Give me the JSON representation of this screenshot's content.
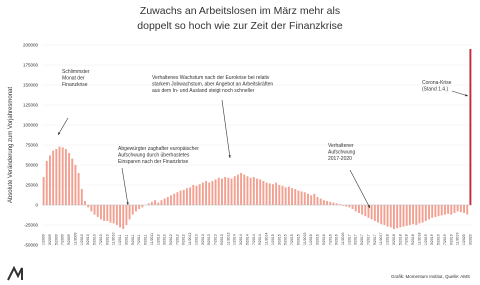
{
  "chart_data": {
    "type": "bar",
    "title": [
      "Zuwachs an Arbeitslosen im März mehr als",
      "doppelt so hoch wie zur Zeit der Finanzkrise"
    ],
    "y_label": "Absolute Veränderung zum Vorjahresmonat",
    "source": "Grafik: Momentum Institut, Quelle: AMS",
    "color": "#f2a092",
    "highlight_color": "#c8283c",
    "ylim": [
      -50000,
      200000
    ],
    "yticks": [
      -50000,
      -25000,
      0,
      25000,
      50000,
      75000,
      100000,
      125000,
      150000,
      175000,
      200000
    ],
    "categories": [
      "1/2009",
      null,
      "3/2009",
      null,
      "5/2009",
      null,
      "7/2009",
      null,
      "9/2009",
      null,
      "11/2009",
      null,
      "1/2010",
      null,
      "3/2010",
      null,
      "5/2010",
      null,
      "7/2010",
      null,
      "9/2010",
      null,
      "11/2010",
      null,
      "1/2011",
      null,
      "3/2011",
      null,
      "5/2011",
      null,
      "7/2011",
      null,
      "9/2011",
      null,
      "11/2011",
      null,
      "1/2012",
      null,
      "3/2012",
      null,
      "5/2012",
      null,
      "7/2012",
      null,
      "9/2012",
      null,
      "11/2012",
      null,
      "1/2013",
      null,
      "3/2013",
      null,
      "5/2013",
      null,
      "7/2013",
      null,
      "9/2013",
      null,
      "11/2013",
      null,
      "1/2014",
      null,
      "3/2014",
      null,
      "5/2014",
      null,
      "7/2014",
      null,
      "9/2014",
      null,
      "11/2014",
      null,
      "1/2015",
      null,
      "3/2015",
      null,
      "5/2015",
      null,
      "7/2015",
      null,
      "9/2015",
      null,
      "11/2015",
      null,
      "1/2016",
      null,
      "3/2016",
      null,
      "5/2016",
      null,
      "7/2016",
      null,
      "9/2016",
      null,
      "11/2016",
      null,
      "1/2017",
      null,
      "3/2017",
      null,
      "5/2017",
      null,
      "7/2017",
      null,
      "9/2017",
      null,
      "11/2017",
      null,
      "1/2018",
      null,
      "3/2018",
      null,
      "5/2018",
      null,
      "7/2018",
      null,
      "9/2018",
      null,
      "11/2018",
      null,
      "1/2019",
      null,
      "3/2019",
      null,
      "5/2019",
      null,
      "7/2019",
      null,
      "9/2019",
      null,
      "11/2019",
      null,
      "1/2020",
      null,
      "3/2020"
    ],
    "values": [
      35000,
      55000,
      62000,
      68000,
      70000,
      73000,
      72000,
      70000,
      65000,
      58000,
      50000,
      40000,
      20000,
      5000,
      -3000,
      -8000,
      -12000,
      -15000,
      -18000,
      -20000,
      -20000,
      -22000,
      -23000,
      -25000,
      -28000,
      -30000,
      -25000,
      -18000,
      -12000,
      -8000,
      -5000,
      -3000,
      0,
      2000,
      4000,
      6000,
      3000,
      6000,
      8000,
      10000,
      12000,
      14000,
      16000,
      18000,
      19000,
      21000,
      22000,
      25000,
      24000,
      26000,
      28000,
      30000,
      28000,
      30000,
      32000,
      34000,
      33000,
      35000,
      34000,
      33000,
      36000,
      38000,
      40000,
      38000,
      36000,
      34000,
      35000,
      33000,
      32000,
      30000,
      28000,
      27000,
      26000,
      28000,
      25000,
      24000,
      22000,
      23000,
      21000,
      20000,
      18000,
      17000,
      16000,
      14000,
      12000,
      14000,
      10000,
      8000,
      6000,
      5000,
      4000,
      3000,
      2000,
      1000,
      -1000,
      -2000,
      -3000,
      -5000,
      -8000,
      -10000,
      -12000,
      -14000,
      -16000,
      -18000,
      -20000,
      -22000,
      -24000,
      -25000,
      -27000,
      -28000,
      -30000,
      -29000,
      -28000,
      -27000,
      -26000,
      -25000,
      -24000,
      -25000,
      -23000,
      -22000,
      -20000,
      -18000,
      -16000,
      -15000,
      -14000,
      -13000,
      -12000,
      -11000,
      -12000,
      -10000,
      -8000,
      -9000,
      -10000,
      -12000,
      195000
    ],
    "annotations": [
      [
        "Schlimmster",
        "Monat der",
        "Finanzkrise"
      ],
      [
        "Abgewürgter zaghafter europäischer",
        "Aufschwung durch überhastetes",
        "Einsparen nach der Finanzkrise"
      ],
      [
        "Verhaltenes Wachstum nach der Eurokrise bei relativ",
        "starkem Jobwachstum, aber Angebot an Arbeitskräften",
        "aus dem In- und Ausland steigt noch schneller"
      ],
      [
        "Verhaltener",
        "Aufschwung",
        "2017-2020"
      ],
      [
        "Corona-Krise",
        "(Stand 1.4.)"
      ]
    ]
  }
}
